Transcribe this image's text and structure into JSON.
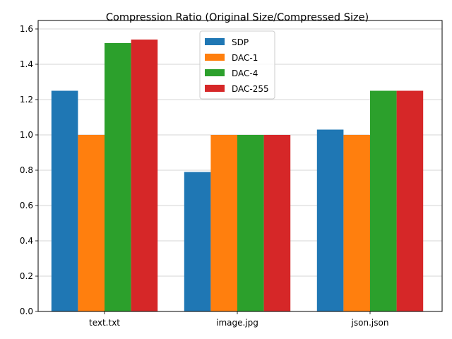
{
  "chart_data": {
    "type": "bar",
    "title": "Compression Ratio (Original Size/Compressed Size)",
    "xlabel": "",
    "ylabel": "",
    "categories": [
      "text.txt",
      "image.jpg",
      "json.json"
    ],
    "series": [
      {
        "name": "SDP",
        "color": "#1f77b4",
        "values": [
          1.25,
          0.79,
          1.03
        ]
      },
      {
        "name": "DAC-1",
        "color": "#ff7f0e",
        "values": [
          1.0,
          1.0,
          1.0
        ]
      },
      {
        "name": "DAC-4",
        "color": "#2ca02c",
        "values": [
          1.52,
          1.0,
          1.25
        ]
      },
      {
        "name": "DAC-255",
        "color": "#d62728",
        "values": [
          1.54,
          1.0,
          1.25
        ]
      }
    ],
    "ylim": [
      0,
      1.6
    ],
    "yticks": [
      "0.0",
      "0.2",
      "0.4",
      "0.6",
      "0.8",
      "1.0",
      "1.2",
      "1.4",
      "1.6"
    ],
    "grid": "y",
    "legend_position": "top-center"
  }
}
